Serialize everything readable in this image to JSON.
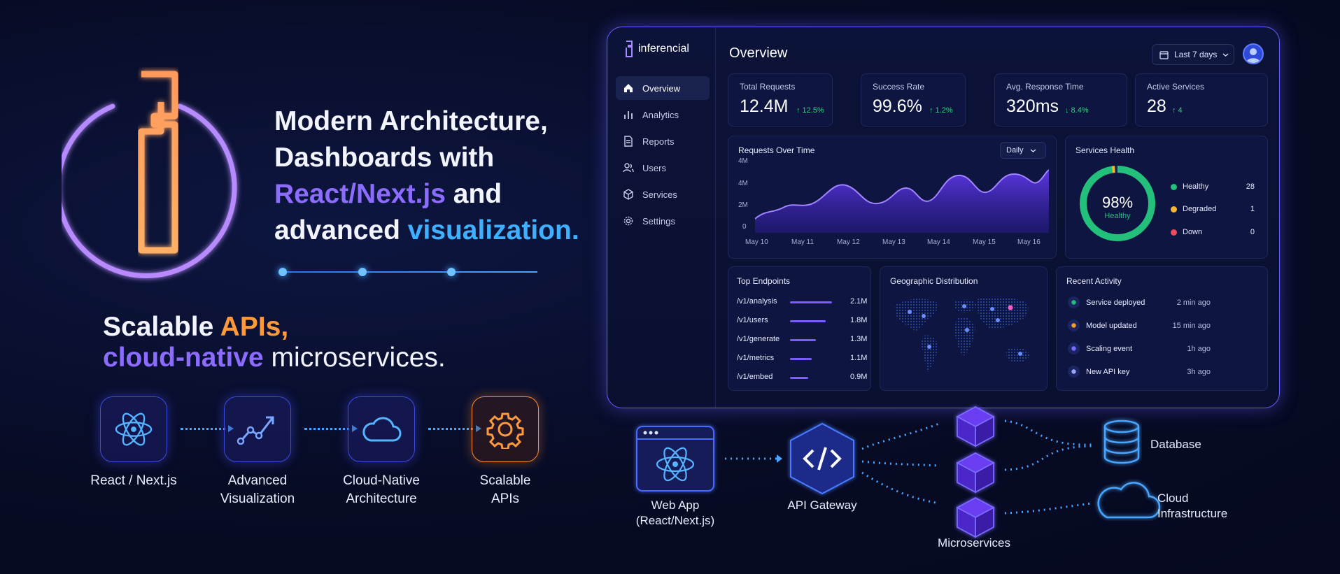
{
  "hero": {
    "line1": "Modern Architecture,",
    "line2": "Dashboards with",
    "line3_highlight": "React/Next.js",
    "line3_rest": " and",
    "line4_rest": "advanced ",
    "line4_highlight": "visualization."
  },
  "subhero": {
    "line1_start": "Scalable ",
    "line1_highlight": "APIs,",
    "line2_highlight": "cloud-native",
    "line2_rest": " microservices."
  },
  "features": [
    {
      "label1": "React / Next.js",
      "label2": "",
      "icon": "react-icon"
    },
    {
      "label1": "Advanced",
      "label2": "Visualization",
      "icon": "chart-icon"
    },
    {
      "label1": "Cloud-Native",
      "label2": "Architecture",
      "icon": "cloud-icon"
    },
    {
      "label1": "Scalable",
      "label2": "APIs",
      "icon": "gear-icon"
    }
  ],
  "dashboard": {
    "brand": "inferencial",
    "title": "Overview",
    "date_range": "Last 7 days",
    "nav": [
      {
        "label": "Overview",
        "icon": "home-icon",
        "active": true
      },
      {
        "label": "Analytics",
        "icon": "bar-chart-icon",
        "active": false
      },
      {
        "label": "Reports",
        "icon": "file-icon",
        "active": false
      },
      {
        "label": "Users",
        "icon": "users-icon",
        "active": false
      },
      {
        "label": "Services",
        "icon": "cube-icon",
        "active": false
      },
      {
        "label": "Settings",
        "icon": "gear-icon",
        "active": false
      }
    ],
    "kpis": [
      {
        "label": "Total Requests",
        "value": "12.4M",
        "delta": "↑ 12.5%"
      },
      {
        "label": "Success Rate",
        "value": "99.6%",
        "delta": "↑ 1.2%"
      },
      {
        "label": "Avg. Response Time",
        "value": "320ms",
        "delta": "↓ 8.4%"
      },
      {
        "label": "Active Services",
        "value": "28",
        "delta": "↑ 4"
      }
    ],
    "requests_chart": {
      "title": "Requests Over Time",
      "interval": "Daily",
      "y_ticks": [
        "4M",
        "4M",
        "2M",
        "0"
      ],
      "x_ticks": [
        "May 10",
        "May 11",
        "May 12",
        "May 13",
        "May 14",
        "May 15",
        "May 16"
      ]
    },
    "health": {
      "title": "Services Health",
      "percent": "98%",
      "status": "Healthy",
      "fraction": 0.98,
      "items": [
        {
          "label": "Healthy",
          "count": "28",
          "color": "#22c07a"
        },
        {
          "label": "Degraded",
          "count": "1",
          "color": "#f5b731"
        },
        {
          "label": "Down",
          "count": "0",
          "color": "#ef4a5a"
        }
      ]
    },
    "endpoints": {
      "title": "Top Endpoints",
      "rows": [
        {
          "path": "/v1/analysis",
          "value": "2.1M",
          "amount": 2.1
        },
        {
          "path": "/v1/users",
          "value": "1.8M",
          "amount": 1.8
        },
        {
          "path": "/v1/generate",
          "value": "1.3M",
          "amount": 1.3
        },
        {
          "path": "/v1/metrics",
          "value": "1.1M",
          "amount": 1.1
        },
        {
          "path": "/v1/embed",
          "value": "0.9M",
          "amount": 0.9
        }
      ]
    },
    "geo": {
      "title": "Geographic Distribution"
    },
    "activity": {
      "title": "Recent Activity",
      "rows": [
        {
          "text": "Service deployed",
          "time": "2 min ago",
          "color": "#22c07a"
        },
        {
          "text": "Model updated",
          "time": "15 min ago",
          "color": "#f5a02c"
        },
        {
          "text": "Scaling event",
          "time": "1h ago",
          "color": "#7a6cff"
        },
        {
          "text": "New API key",
          "time": "3h ago",
          "color": "#9aa6ff"
        }
      ]
    }
  },
  "architecture": {
    "webapp_1": "Web App",
    "webapp_2": "(React/Next.js)",
    "gateway": "API Gateway",
    "microservices": "Microservices",
    "database": "Database",
    "cloud_1": "Cloud",
    "cloud_2": "Infrastructure"
  },
  "colors": {
    "accent_purple": "#8b6cff",
    "accent_blue": "#3fb0ff",
    "accent_orange": "#ff9a3c",
    "positive": "#2fd07a"
  }
}
